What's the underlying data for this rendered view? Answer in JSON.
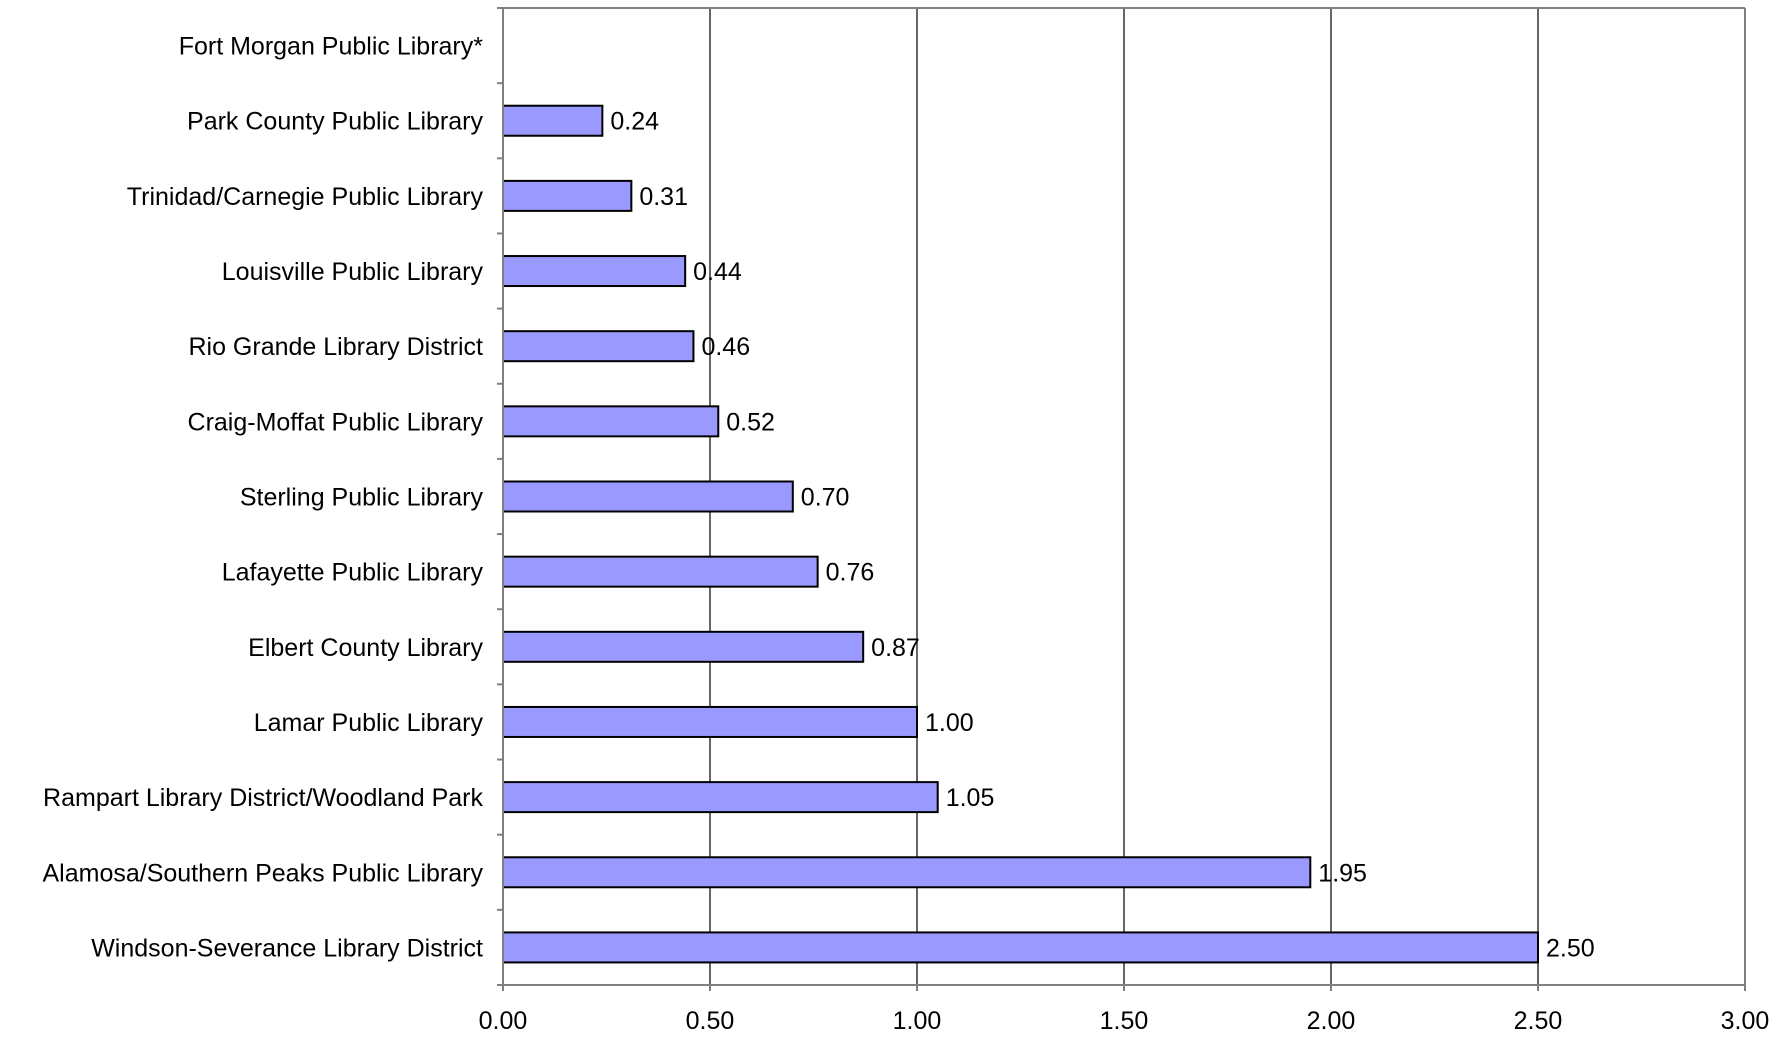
{
  "chart_data": {
    "type": "bar",
    "orientation": "horizontal",
    "categories": [
      "Fort Morgan Public Library*",
      "Park County Public Library",
      "Trinidad/Carnegie Public Library",
      "Louisville Public Library",
      "Rio Grande Library District",
      "Craig-Moffat Public Library",
      "Sterling Public Library",
      "Lafayette Public Library",
      "Elbert County Library",
      "Lamar Public Library",
      "Rampart Library District/Woodland Park",
      "Alamosa/Southern Peaks Public Library",
      "Windson-Severance Library District"
    ],
    "values": [
      null,
      0.24,
      0.31,
      0.44,
      0.46,
      0.52,
      0.7,
      0.76,
      0.87,
      1.0,
      1.05,
      1.95,
      2.5
    ],
    "value_labels": [
      "",
      "0.24",
      "0.31",
      "0.44",
      "0.46",
      "0.52",
      "0.70",
      "0.76",
      "0.87",
      "1.00",
      "1.05",
      "1.95",
      "2.50"
    ],
    "x_ticks": [
      0,
      0.5,
      1,
      1.5,
      2,
      2.5,
      3
    ],
    "x_tick_labels": [
      "0.00",
      "0.50",
      "1.00",
      "1.50",
      "2.00",
      "2.50",
      "3.00"
    ],
    "xlim": [
      0,
      3
    ],
    "title": "",
    "xlabel": "",
    "ylabel": "",
    "grid": "vertical",
    "legend": "none",
    "colors": {
      "bar_fill": "#9999ff",
      "bar_stroke": "#000000",
      "gridline": "#000000",
      "axis": "#808080",
      "background": "#ffffff"
    }
  }
}
